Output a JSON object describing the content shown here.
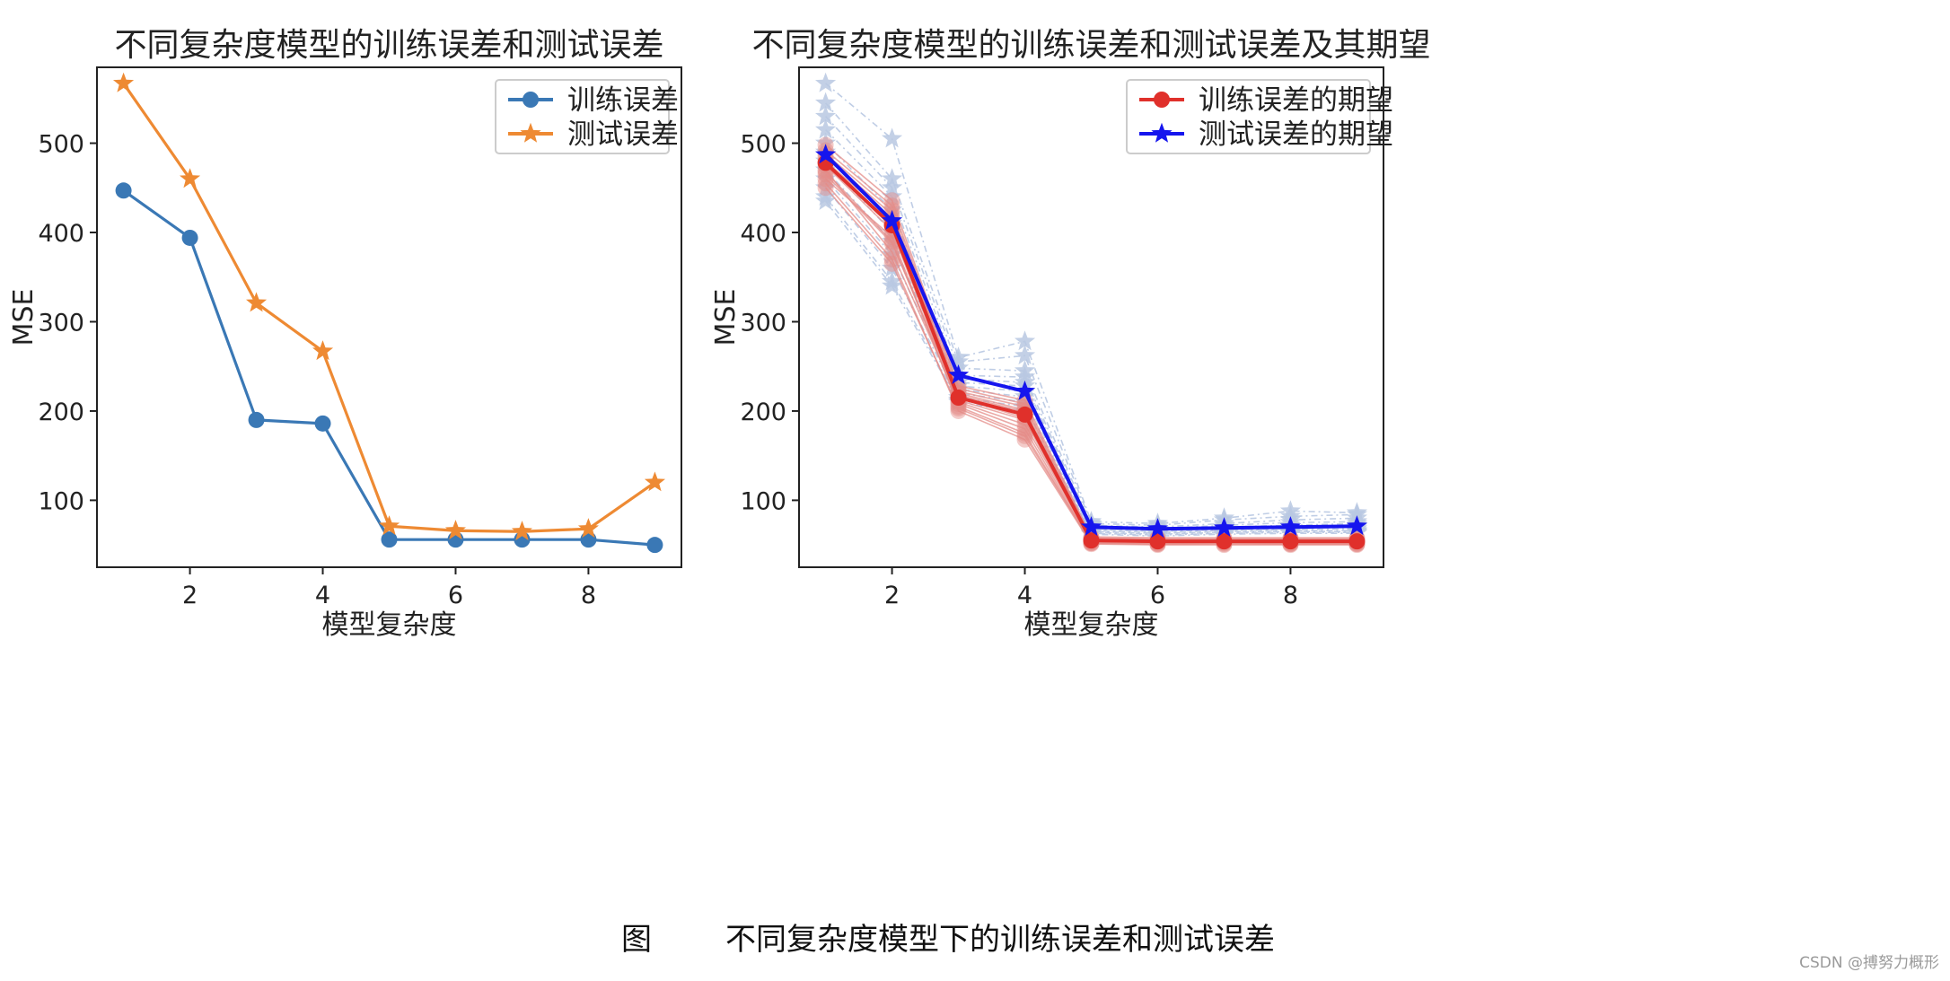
{
  "caption": {
    "label": "图",
    "text": "不同复杂度模型下的训练误差和测试误差"
  },
  "watermark": "CSDN @搏努力概形",
  "chart_data": [
    {
      "type": "line",
      "title": "不同复杂度模型的训练误差和测试误差",
      "xlabel": "模型复杂度",
      "ylabel": "MSE",
      "xlim": [
        0.6,
        9.4
      ],
      "ylim": [
        25,
        585
      ],
      "xticks": [
        2,
        4,
        6,
        8
      ],
      "yticks": [
        100,
        200,
        300,
        400,
        500
      ],
      "legend": "top-right",
      "x": [
        1,
        2,
        3,
        4,
        5,
        6,
        7,
        8,
        9
      ],
      "series": [
        {
          "name": "训练误差",
          "color": "#3a78b5",
          "marker": "circle",
          "values": [
            447,
            394,
            190,
            186,
            56,
            56,
            56,
            56,
            50
          ]
        },
        {
          "name": "测试误差",
          "color": "#ee8a33",
          "marker": "star",
          "values": [
            567,
            460,
            321,
            267,
            71,
            66,
            65,
            68,
            120
          ]
        }
      ]
    },
    {
      "type": "line",
      "title": "不同复杂度模型的训练误差和测试误差及其期望",
      "xlabel": "模型复杂度",
      "ylabel": "MSE",
      "xlim": [
        0.6,
        9.4
      ],
      "ylim": [
        25,
        585
      ],
      "xticks": [
        2,
        4,
        6,
        8
      ],
      "yticks": [
        100,
        200,
        300,
        400,
        500
      ],
      "legend": "top-right",
      "x": [
        1,
        2,
        3,
        4,
        5,
        6,
        7,
        8,
        9
      ],
      "series": [
        {
          "name": "训练误差的期望",
          "color": "#e0302b",
          "marker": "circle",
          "values": [
            478,
            408,
            215,
            196,
            55,
            54,
            54,
            54,
            54
          ]
        },
        {
          "name": "测试误差的期望",
          "color": "#1515ee",
          "marker": "star",
          "values": [
            487,
            413,
            240,
            222,
            70,
            68,
            69,
            70,
            71
          ]
        }
      ],
      "background_runs": {
        "train_color": "#e48c88",
        "test_color": "#b8c8e2",
        "train": [
          [
            470,
            378,
            212,
            190,
            54,
            53,
            53,
            53,
            53
          ],
          [
            485,
            420,
            218,
            199,
            56,
            55,
            55,
            55,
            55
          ],
          [
            460,
            395,
            205,
            175,
            52,
            51,
            51,
            51,
            51
          ],
          [
            492,
            430,
            225,
            208,
            58,
            57,
            57,
            57,
            57
          ],
          [
            455,
            370,
            200,
            168,
            51,
            50,
            50,
            50,
            50
          ],
          [
            498,
            436,
            228,
            212,
            59,
            58,
            58,
            58,
            58
          ],
          [
            475,
            402,
            210,
            185,
            55,
            54,
            54,
            54,
            54
          ],
          [
            465,
            388,
            215,
            192,
            54,
            53,
            54,
            53,
            53
          ],
          [
            488,
            425,
            220,
            201,
            56,
            55,
            55,
            56,
            55
          ],
          [
            450,
            365,
            203,
            172,
            52,
            51,
            52,
            51,
            51
          ],
          [
            480,
            415,
            222,
            205,
            57,
            56,
            56,
            56,
            56
          ],
          [
            468,
            390,
            208,
            180,
            53,
            52,
            53,
            52,
            52
          ]
        ],
        "test": [
          [
            567,
            505,
            260,
            278,
            76,
            74,
            80,
            88,
            86
          ],
          [
            545,
            460,
            255,
            262,
            74,
            72,
            78,
            82,
            84
          ],
          [
            530,
            450,
            248,
            245,
            72,
            70,
            74,
            78,
            80
          ],
          [
            515,
            440,
            240,
            238,
            70,
            68,
            72,
            75,
            76
          ],
          [
            500,
            425,
            236,
            232,
            69,
            67,
            70,
            72,
            74
          ],
          [
            490,
            410,
            232,
            228,
            68,
            66,
            68,
            70,
            72
          ],
          [
            480,
            400,
            228,
            222,
            67,
            65,
            67,
            68,
            70
          ],
          [
            470,
            390,
            224,
            216,
            66,
            64,
            66,
            67,
            68
          ],
          [
            460,
            375,
            220,
            210,
            65,
            63,
            65,
            66,
            66
          ],
          [
            450,
            360,
            215,
            205,
            64,
            62,
            64,
            65,
            65
          ],
          [
            440,
            345,
            212,
            200,
            63,
            61,
            63,
            64,
            64
          ],
          [
            435,
            340,
            210,
            198,
            62,
            60,
            62,
            63,
            63
          ]
        ]
      }
    }
  ]
}
